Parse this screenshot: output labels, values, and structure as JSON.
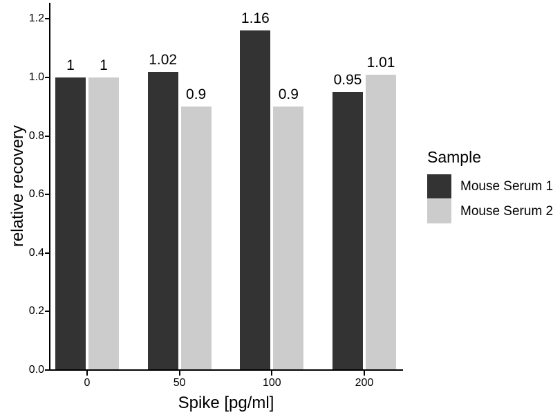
{
  "chart_data": {
    "type": "bar",
    "title": "",
    "xlabel": "Spike [pg/ml]",
    "ylabel": "relative recovery",
    "categories": [
      "0",
      "50",
      "100",
      "200"
    ],
    "series": [
      {
        "name": "Mouse Serum 1",
        "color": "#333333",
        "values": [
          1,
          1.02,
          1.16,
          0.95
        ],
        "value_labels": [
          "1",
          "1.02",
          "1.16",
          "0.95"
        ]
      },
      {
        "name": "Mouse Serum 2",
        "color": "#cccccc",
        "values": [
          1,
          0.9,
          0.9,
          1.01
        ],
        "value_labels": [
          "1",
          "0.9",
          "0.9",
          "1.01"
        ]
      }
    ],
    "yticks": [
      0.0,
      0.2,
      0.4,
      0.6,
      0.8,
      1.0,
      1.2
    ],
    "ytick_labels": [
      "0.0",
      "0.2",
      "0.4",
      "0.6",
      "0.8",
      "1.0",
      "1.2"
    ],
    "ylim": [
      0,
      1.26
    ],
    "legend": {
      "title": "Sample",
      "position": "right"
    },
    "grid": false,
    "background": "#ffffff",
    "axis_color": "#000000",
    "text_color": "#000000"
  }
}
